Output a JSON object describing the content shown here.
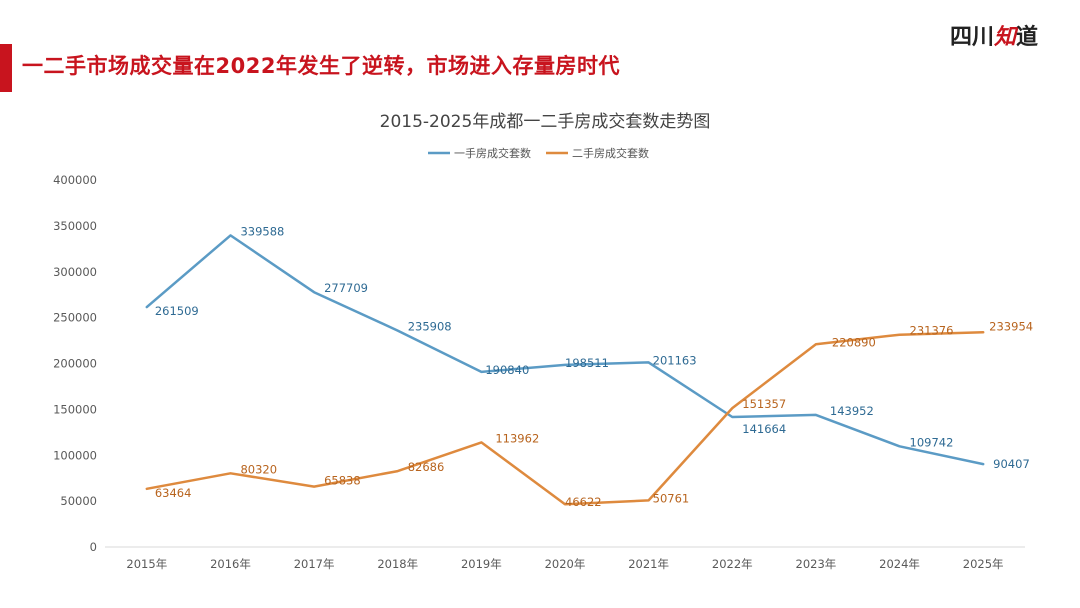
{
  "headline": "一二手市场成交量在2022年发生了逆转，市场进入存量房时代",
  "logo": {
    "part1": "四川",
    "part2": "知",
    "part3": "道"
  },
  "colors": {
    "accent": "#c8141e",
    "series_new": "#5b9bc5",
    "series_second": "#de8a3e",
    "label_new": "#2e6a93",
    "label_second": "#b8641e"
  },
  "chart_data": {
    "type": "line",
    "title": "2015-2025年成都一二手房成交套数走势图",
    "xlabel": "",
    "ylabel": "",
    "ylim": [
      0,
      400000
    ],
    "yticks": [
      "0",
      "50000",
      "100000",
      "150000",
      "200000",
      "250000",
      "300000",
      "350000",
      "400000"
    ],
    "categories": [
      "2015年",
      "2016年",
      "2017年",
      "2018年",
      "2019年",
      "2020年",
      "2021年",
      "2022年",
      "2023年",
      "2024年",
      "2025年"
    ],
    "legend_position": "top-center",
    "series": [
      {
        "name": "一手房成交套数",
        "values": [
          261509,
          339588,
          277709,
          235908,
          190840,
          198511,
          201163,
          141664,
          143952,
          109742,
          90407
        ]
      },
      {
        "name": "二手房成交套数",
        "values": [
          63464,
          80320,
          65838,
          82686,
          113962,
          46622,
          50761,
          151357,
          220890,
          231376,
          233954
        ]
      }
    ]
  }
}
